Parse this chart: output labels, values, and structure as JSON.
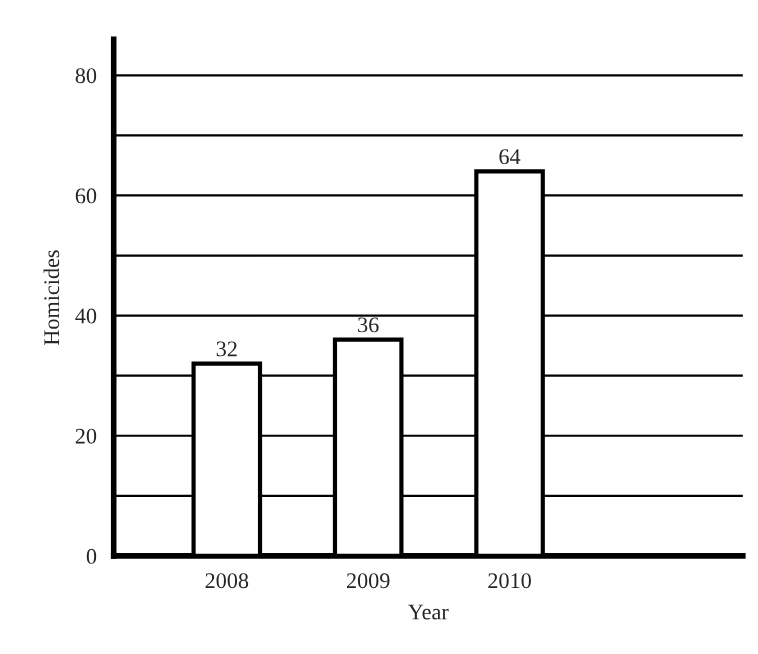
{
  "chart_data": {
    "type": "bar",
    "xlabel": "Year",
    "ylabel": "Homicides",
    "categories": [
      "2008",
      "2009",
      "2010"
    ],
    "values": [
      32,
      36,
      64
    ],
    "color": "#ffffff",
    "data_labels": true,
    "ylim": [
      0,
      86
    ],
    "yticks": [
      0,
      {
        "value": 10,
        "label": null
      },
      20,
      {
        "value": 30,
        "label": null
      },
      40,
      {
        "value": 50,
        "label": null
      },
      60,
      {
        "value": 70,
        "label": null
      },
      80
    ],
    "grid": "y"
  }
}
